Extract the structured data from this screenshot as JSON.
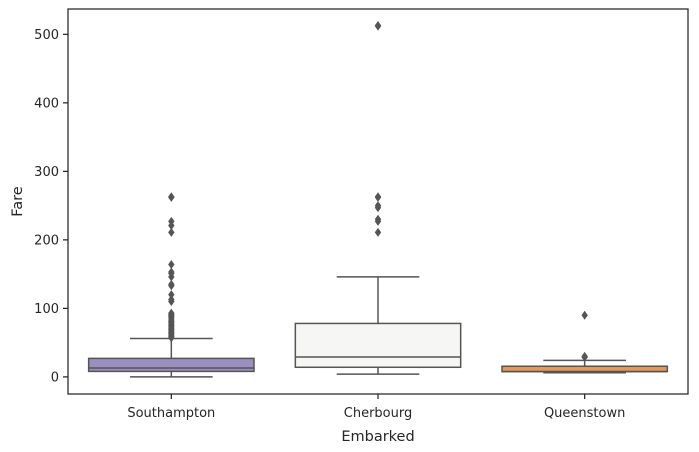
{
  "chart_data": {
    "type": "box",
    "title": "",
    "xlabel": "Embarked",
    "ylabel": "Fare",
    "ylim": [
      -25,
      537
    ],
    "yticks": [
      0,
      100,
      200,
      300,
      400,
      500
    ],
    "grid": false,
    "legend": "none",
    "categories": [
      "Southampton",
      "Cherbourg",
      "Queenstown"
    ],
    "boxes": [
      {
        "category": "Southampton",
        "color": "#9a8fbf",
        "whisker_low": 0,
        "q1": 8,
        "median": 13,
        "q3": 27,
        "whisker_high": 56,
        "outliers": [
          57,
          59,
          61,
          63,
          65,
          67,
          69,
          71,
          73,
          75,
          77,
          79,
          81,
          83,
          86,
          88,
          90,
          91,
          93,
          110,
          113,
          120,
          133,
          135,
          146,
          151,
          153,
          164,
          211,
          221,
          227,
          262,
          263
        ]
      },
      {
        "category": "Cherbourg",
        "color": "#f6f6f4",
        "whisker_low": 4,
        "q1": 14,
        "median": 29,
        "q3": 78,
        "whisker_high": 146,
        "outliers": [
          211,
          227,
          230,
          247,
          250,
          262,
          263,
          512,
          513
        ]
      },
      {
        "category": "Queenstown",
        "color": "#e4995a",
        "whisker_low": 6,
        "q1": 7.75,
        "median": 7.75,
        "q3": 15.5,
        "whisker_high": 24,
        "outliers": [
          29,
          29.1,
          30,
          90
        ]
      }
    ]
  }
}
